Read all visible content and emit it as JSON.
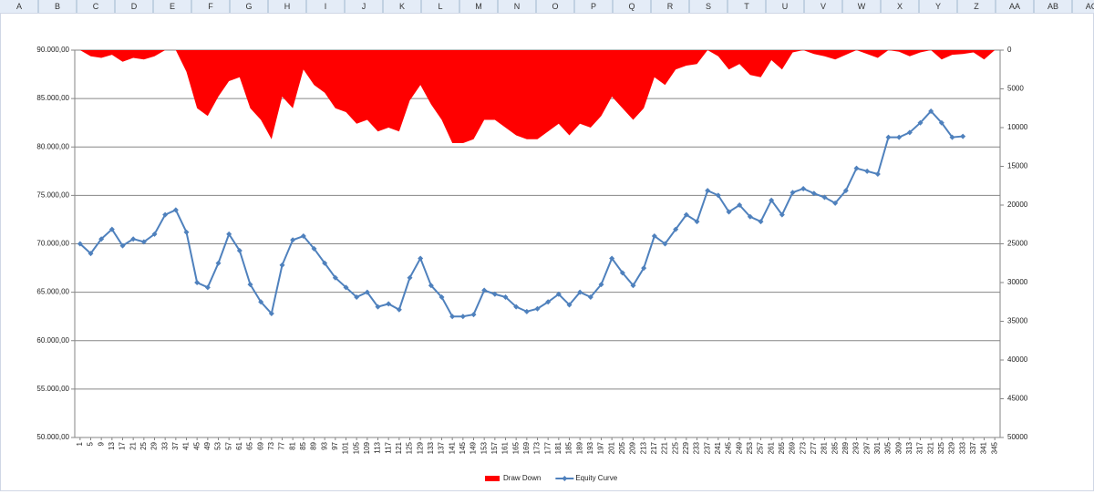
{
  "spreadsheet": {
    "columns": [
      "A",
      "B",
      "C",
      "D",
      "E",
      "F",
      "G",
      "H",
      "I",
      "J",
      "K",
      "L",
      "M",
      "N",
      "O",
      "P",
      "Q",
      "R",
      "S",
      "T",
      "U",
      "V",
      "W",
      "X",
      "Y",
      "Z",
      "AA",
      "AB",
      "AC"
    ]
  },
  "chart_data": {
    "type": "line",
    "categories": [
      "1",
      "5",
      "9",
      "13",
      "17",
      "21",
      "25",
      "29",
      "33",
      "37",
      "41",
      "45",
      "49",
      "53",
      "57",
      "61",
      "65",
      "69",
      "73",
      "77",
      "81",
      "85",
      "89",
      "93",
      "97",
      "101",
      "105",
      "109",
      "113",
      "117",
      "121",
      "125",
      "129",
      "133",
      "137",
      "141",
      "145",
      "149",
      "153",
      "157",
      "161",
      "165",
      "169",
      "173",
      "177",
      "181",
      "185",
      "189",
      "193",
      "197",
      "201",
      "205",
      "209",
      "213",
      "217",
      "221",
      "225",
      "229",
      "233",
      "237",
      "241",
      "245",
      "249",
      "253",
      "257",
      "261",
      "265",
      "269",
      "273",
      "277",
      "281",
      "285",
      "289",
      "293",
      "297",
      "301",
      "305",
      "309",
      "313",
      "317",
      "321",
      "325",
      "329",
      "333",
      "337",
      "341",
      "345"
    ],
    "ylim": [
      50000,
      90000
    ],
    "yticks": [
      {
        "value": 50000,
        "label": "50.000,00"
      },
      {
        "value": 55000,
        "label": "55.000,00"
      },
      {
        "value": 60000,
        "label": "60.000,00"
      },
      {
        "value": 65000,
        "label": "65.000,00"
      },
      {
        "value": 70000,
        "label": "70.000,00"
      },
      {
        "value": 75000,
        "label": "75.000,00"
      },
      {
        "value": 80000,
        "label": "80.000,00"
      },
      {
        "value": 85000,
        "label": "85.000,00"
      },
      {
        "value": 90000,
        "label": "90.000,00"
      }
    ],
    "y2lim": [
      50000,
      0
    ],
    "y2ticks": [
      0,
      5000,
      10000,
      15000,
      20000,
      25000,
      30000,
      35000,
      40000,
      45000,
      50000
    ],
    "grid": true,
    "legend": "bottom",
    "series": [
      {
        "name": "Draw Down",
        "type": "area",
        "axis": "y2",
        "color": "#ff0000",
        "values": [
          0,
          800,
          1000,
          600,
          1500,
          1000,
          1200,
          800,
          0,
          0,
          2800,
          7500,
          8500,
          6000,
          4000,
          3500,
          7500,
          9000,
          11500,
          6000,
          7500,
          2500,
          4500,
          5500,
          7500,
          8000,
          9500,
          9000,
          10500,
          10000,
          10500,
          6500,
          4500,
          7000,
          9000,
          12000,
          12000,
          11500,
          9000,
          9000,
          10000,
          11000,
          11500,
          11500,
          10500,
          9500,
          11000,
          9500,
          10000,
          8500,
          6000,
          7500,
          9000,
          7500,
          3500,
          4500,
          2500,
          2000,
          1800,
          0,
          800,
          2500,
          1800,
          3200,
          3500,
          1300,
          2500,
          300,
          0,
          500,
          800,
          1200,
          600,
          0,
          500,
          1000,
          0,
          200,
          800,
          300,
          0,
          1200,
          600,
          500,
          300,
          1200,
          0
        ]
      },
      {
        "name": "Equity Curve",
        "type": "line",
        "color": "#4f81bd",
        "values": [
          70000,
          69000,
          70500,
          71500,
          69800,
          70500,
          70200,
          71000,
          73000,
          73500,
          71200,
          66000,
          65500,
          68000,
          71000,
          69300,
          65800,
          64000,
          62800,
          67800,
          70400,
          70800,
          69500,
          68000,
          66500,
          65500,
          64500,
          65000,
          63500,
          63800,
          63200,
          66500,
          68500,
          65700,
          64500,
          62500,
          62500,
          62700,
          65200,
          64800,
          64500,
          63500,
          63000,
          63300,
          64000,
          64800,
          63700,
          65000,
          64500,
          65800,
          68500,
          67000,
          65700,
          67500,
          70800,
          70000,
          71500,
          73000,
          72300,
          75500,
          75000,
          73300,
          74000,
          72800,
          72300,
          74500,
          73000,
          75300,
          75700,
          75200,
          74800,
          74200,
          75500,
          77800,
          77500,
          77200,
          81000,
          81000,
          81500,
          82500,
          83700,
          82500,
          81000,
          81100,
          null,
          null,
          null
        ]
      }
    ]
  }
}
